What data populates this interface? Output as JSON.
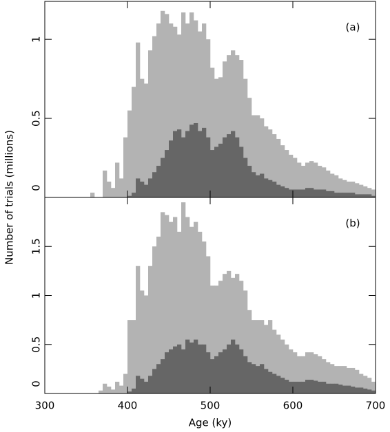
{
  "chart_data": [
    {
      "type": "histogram",
      "annotation": "(a)",
      "ylabel": "Number of trials (millions)",
      "bins": [
        355,
        360,
        365,
        370,
        375,
        380,
        385,
        390,
        395,
        400,
        405,
        410,
        415,
        420,
        425,
        430,
        435,
        440,
        445,
        450,
        455,
        460,
        465,
        470,
        475,
        480,
        485,
        490,
        495,
        500,
        505,
        510,
        515,
        520,
        525,
        530,
        535,
        540,
        545,
        550,
        555,
        560,
        565,
        570,
        575,
        580,
        585,
        590,
        595,
        600,
        605,
        610,
        615,
        620,
        625,
        630,
        635,
        640,
        645,
        650,
        655,
        660,
        665,
        670,
        675,
        680,
        685,
        690,
        695,
        700
      ],
      "series": [
        {
          "color": "#b3b3b3",
          "values": [
            0.03,
            0,
            0,
            0.17,
            0.1,
            0.06,
            0.22,
            0.12,
            0.38,
            0.55,
            0.7,
            0.98,
            0.75,
            0.72,
            0.93,
            1.02,
            1.1,
            1.18,
            1.16,
            1.1,
            1.08,
            1.03,
            1.17,
            1.1,
            1.17,
            1.12,
            1.05,
            1.1,
            1.0,
            0.82,
            0.75,
            0.76,
            0.86,
            0.9,
            0.93,
            0.9,
            0.87,
            0.75,
            0.63,
            0.52,
            0.52,
            0.5,
            0.45,
            0.43,
            0.4,
            0.37,
            0.33,
            0.3,
            0.27,
            0.25,
            0.22,
            0.2,
            0.22,
            0.23,
            0.22,
            0.2,
            0.19,
            0.17,
            0.15,
            0.14,
            0.12,
            0.11,
            0.1,
            0.1,
            0.09,
            0.08,
            0.07,
            0.06,
            0.05
          ]
        },
        {
          "color": "#666666",
          "values": [
            0,
            0,
            0,
            0,
            0,
            0,
            0,
            0,
            0,
            0.01,
            0.03,
            0.12,
            0.1,
            0.08,
            0.12,
            0.16,
            0.2,
            0.25,
            0.3,
            0.36,
            0.42,
            0.43,
            0.38,
            0.42,
            0.46,
            0.47,
            0.42,
            0.44,
            0.38,
            0.3,
            0.32,
            0.34,
            0.38,
            0.4,
            0.42,
            0.38,
            0.32,
            0.25,
            0.2,
            0.16,
            0.14,
            0.15,
            0.12,
            0.11,
            0.1,
            0.08,
            0.07,
            0.06,
            0.05,
            0.05,
            0.05,
            0.05,
            0.06,
            0.06,
            0.05,
            0.05,
            0.05,
            0.04,
            0.04,
            0.03,
            0.03,
            0.03,
            0.03,
            0.03,
            0.02,
            0.02,
            0.02,
            0.02,
            0.01
          ]
        }
      ],
      "xlim": [
        300,
        700
      ],
      "xticks": [
        300,
        400,
        500,
        600,
        700
      ],
      "ylim": [
        0,
        1.24
      ],
      "yticks": [
        0,
        0.5,
        1
      ]
    },
    {
      "type": "histogram",
      "annotation": "(b)",
      "xlabel": "Age (ky)",
      "bins": [
        355,
        360,
        365,
        370,
        375,
        380,
        385,
        390,
        395,
        400,
        405,
        410,
        415,
        420,
        425,
        430,
        435,
        440,
        445,
        450,
        455,
        460,
        465,
        470,
        475,
        480,
        485,
        490,
        495,
        500,
        505,
        510,
        515,
        520,
        525,
        530,
        535,
        540,
        545,
        550,
        555,
        560,
        565,
        570,
        575,
        580,
        585,
        590,
        595,
        600,
        605,
        610,
        615,
        620,
        625,
        630,
        635,
        640,
        645,
        650,
        655,
        660,
        665,
        670,
        675,
        680,
        685,
        690,
        695,
        700
      ],
      "series": [
        {
          "color": "#b3b3b3",
          "values": [
            0,
            0,
            0.03,
            0.1,
            0.07,
            0.04,
            0.12,
            0.08,
            0.2,
            0.75,
            0.75,
            1.3,
            1.05,
            1.0,
            1.3,
            1.5,
            1.6,
            1.85,
            1.82,
            1.75,
            1.8,
            1.65,
            1.95,
            1.8,
            1.7,
            1.75,
            1.65,
            1.55,
            1.4,
            1.1,
            1.1,
            1.15,
            1.22,
            1.25,
            1.18,
            1.22,
            1.15,
            1.05,
            0.85,
            0.75,
            0.75,
            0.75,
            0.7,
            0.75,
            0.65,
            0.6,
            0.55,
            0.5,
            0.45,
            0.42,
            0.38,
            0.38,
            0.42,
            0.42,
            0.4,
            0.38,
            0.35,
            0.32,
            0.3,
            0.28,
            0.28,
            0.28,
            0.26,
            0.26,
            0.24,
            0.2,
            0.18,
            0.16,
            0.12
          ]
        },
        {
          "color": "#666666",
          "values": [
            0,
            0,
            0,
            0,
            0,
            0,
            0,
            0,
            0,
            0.02,
            0.05,
            0.18,
            0.15,
            0.12,
            0.18,
            0.25,
            0.3,
            0.35,
            0.42,
            0.45,
            0.48,
            0.5,
            0.45,
            0.55,
            0.52,
            0.55,
            0.5,
            0.5,
            0.42,
            0.35,
            0.38,
            0.42,
            0.45,
            0.5,
            0.55,
            0.5,
            0.45,
            0.38,
            0.32,
            0.3,
            0.28,
            0.3,
            0.25,
            0.22,
            0.2,
            0.18,
            0.16,
            0.14,
            0.12,
            0.12,
            0.12,
            0.12,
            0.14,
            0.14,
            0.13,
            0.12,
            0.12,
            0.1,
            0.1,
            0.1,
            0.09,
            0.08,
            0.08,
            0.07,
            0.06,
            0.06,
            0.05,
            0.04,
            0.03
          ]
        }
      ],
      "xlim": [
        300,
        700
      ],
      "xticks": [
        300,
        400,
        500,
        600,
        700
      ],
      "ylim": [
        0,
        2
      ],
      "yticks": [
        0,
        0.5,
        1,
        1.5
      ]
    }
  ]
}
